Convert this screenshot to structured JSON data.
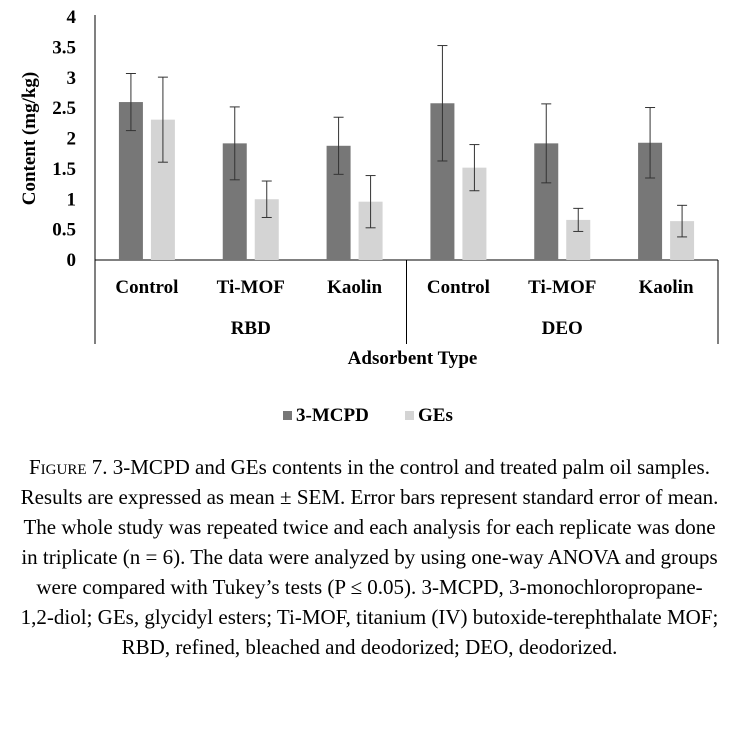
{
  "chart_data": {
    "type": "bar",
    "ylabel": "Content (mg/kg)",
    "xlabel": "Adsorbent Type",
    "ylim": [
      0,
      4
    ],
    "yticks": [
      "0",
      "0.5",
      "1",
      "1.5",
      "2",
      "2.5",
      "3",
      "3.5",
      "4"
    ],
    "groups": [
      {
        "name": "RBD",
        "categories": [
          "Control",
          "Ti-MOF",
          "Kaolin"
        ]
      },
      {
        "name": "DEO",
        "categories": [
          "Control",
          "Ti-MOF",
          "Kaolin"
        ]
      }
    ],
    "categories": [
      "Control",
      "Ti-MOF",
      "Kaolin",
      "Control",
      "Ti-MOF",
      "Kaolin"
    ],
    "series": [
      {
        "name": "3-MCPD",
        "color": "#777777",
        "values": [
          2.6,
          1.92,
          1.88,
          2.58,
          1.92,
          1.93
        ],
        "error": [
          0.47,
          0.6,
          0.47,
          0.95,
          0.65,
          0.58
        ]
      },
      {
        "name": "GEs",
        "color": "#d4d4d4",
        "values": [
          2.31,
          1.0,
          0.96,
          1.52,
          0.66,
          0.64
        ],
        "error": [
          0.7,
          0.3,
          0.43,
          0.38,
          0.19,
          0.26
        ]
      }
    ],
    "legend_position": "bottom",
    "grid": false
  },
  "caption": {
    "figure_word": "Figure",
    "figure_num": " 7.",
    "text": " 3-MCPD and GEs contents in the control and treated palm oil samples. Results are expressed as mean ± SEM. Error bars represent standard error of mean. The whole study was repeated twice and each analysis for each replicate was done in triplicate (n = 6). The data were analyzed by using one-way ANOVA and groups were compared with Tukey’s tests (P ≤ 0.05). 3-MCPD, 3-monochloropropane-1,2-diol; GEs, glycidyl esters; Ti-MOF, titanium (IV) butoxide-terephthalate MOF; RBD, refined, bleached and deodorized; DEO, deodorized."
  }
}
